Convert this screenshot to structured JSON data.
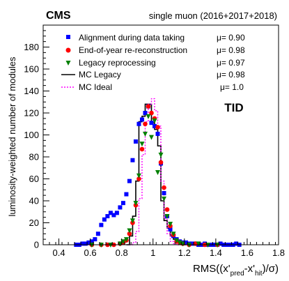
{
  "chart_data": {
    "type": "scatter",
    "experiment": "CMS",
    "dataset": "single muon (2016+2017+2018)",
    "region": "TID",
    "xlabel": {
      "main": "RMS((x'",
      "sub1": "pred",
      "mid": "-x'",
      "sub2": "hit",
      "end": ")/σ)"
    },
    "ylabel": "luminosity-weighted number of modules",
    "xlim": [
      0.3,
      1.8
    ],
    "ylim": [
      0,
      200
    ],
    "xticks": [
      "0.4",
      "0.6",
      "0.8",
      "1",
      "1.2",
      "1.4",
      "1.6",
      "1.8"
    ],
    "yticks": [
      "0",
      "20",
      "40",
      "60",
      "80",
      "100",
      "120",
      "140",
      "160",
      "180"
    ],
    "legend_position": "top-left",
    "series": [
      {
        "name": "Alignment during data taking",
        "mu": "μ= 0.90",
        "marker": "square",
        "color": "#0000ff",
        "x": [
          0.51,
          0.53,
          0.55,
          0.57,
          0.59,
          0.61,
          0.63,
          0.65,
          0.67,
          0.69,
          0.71,
          0.73,
          0.75,
          0.77,
          0.79,
          0.81,
          0.83,
          0.85,
          0.87,
          0.89,
          0.91,
          0.93,
          0.95,
          0.97,
          0.99,
          1.01,
          1.03,
          1.05,
          1.07,
          1.09,
          1.11,
          1.13,
          1.15,
          1.17,
          1.19,
          1.21,
          1.23,
          1.25,
          1.27,
          1.29,
          1.31,
          1.33,
          1.35,
          1.37,
          1.39,
          1.41,
          1.43,
          1.45,
          1.47,
          1.49,
          1.51,
          1.53,
          1.55
        ],
        "y": [
          0,
          0,
          1,
          1,
          2,
          3,
          5,
          10,
          18,
          23,
          26,
          29,
          27,
          29,
          34,
          38,
          46,
          58,
          77,
          94,
          110,
          114,
          120,
          126,
          111,
          108,
          101,
          74,
          47,
          26,
          14,
          8,
          5,
          3,
          2,
          2,
          1,
          1,
          1,
          0,
          0,
          1,
          0,
          0,
          0,
          0,
          1,
          0,
          0,
          0,
          0,
          1,
          0
        ]
      },
      {
        "name": "End-of-year re-reconstruction",
        "mu": "μ= 0.98",
        "marker": "circle",
        "color": "#ff0000",
        "x": [
          0.61,
          0.67,
          0.71,
          0.75,
          0.79,
          0.81,
          0.83,
          0.85,
          0.87,
          0.89,
          0.91,
          0.93,
          0.95,
          0.97,
          0.99,
          1.01,
          1.03,
          1.05,
          1.07,
          1.09,
          1.11,
          1.13,
          1.15,
          1.17,
          1.19,
          1.23,
          1.27,
          1.33,
          1.41
        ],
        "y": [
          0,
          0,
          0,
          0,
          1,
          2,
          4,
          10,
          20,
          36,
          60,
          87,
          110,
          126,
          120,
          115,
          107,
          75,
          52,
          32,
          17,
          9,
          3,
          2,
          1,
          0,
          1,
          0,
          0
        ]
      },
      {
        "name": "Legacy reprocessing",
        "mu": "μ= 0.97",
        "marker": "triangle-down",
        "color": "#008000",
        "x": [
          0.61,
          0.67,
          0.73,
          0.79,
          0.81,
          0.83,
          0.85,
          0.87,
          0.89,
          0.91,
          0.93,
          0.95,
          0.97,
          0.99,
          1.01,
          1.03,
          1.05,
          1.07,
          1.09,
          1.11,
          1.13,
          1.15,
          1.17,
          1.19,
          1.23,
          1.29,
          1.35,
          1.41
        ],
        "y": [
          0,
          0,
          0,
          1,
          3,
          5,
          13,
          22,
          38,
          63,
          92,
          101,
          117,
          98,
          113,
          66,
          82,
          42,
          26,
          19,
          10,
          4,
          2,
          1,
          0,
          1,
          0,
          0
        ]
      },
      {
        "name": "MC Legacy",
        "mu": "μ= 0.98",
        "style": "histogram-solid",
        "color": "#000000",
        "x": [
          0.84,
          0.86,
          0.88,
          0.9,
          0.92,
          0.94,
          0.96,
          0.98,
          1.0,
          1.02,
          1.04,
          1.06,
          1.08,
          1.1,
          1.12,
          1.14,
          1.16,
          1.18,
          1.2
        ],
        "y": [
          0,
          8,
          26,
          58,
          112,
          117,
          128,
          128,
          111,
          105,
          90,
          40,
          22,
          15,
          8,
          5,
          2,
          1,
          0
        ]
      },
      {
        "name": "MC Ideal",
        "mu": "μ= 1.0",
        "style": "histogram-dotted",
        "color": "#ff00ff",
        "x": [
          0.86,
          0.88,
          0.9,
          0.92,
          0.94,
          0.96,
          0.98,
          1.0,
          1.02,
          1.04,
          1.06,
          1.08,
          1.1,
          1.12,
          1.14,
          1.16,
          1.18,
          1.2
        ],
        "y": [
          0,
          2,
          12,
          42,
          82,
          112,
          128,
          133,
          122,
          108,
          58,
          24,
          10,
          3,
          1,
          0,
          0,
          0
        ]
      }
    ]
  }
}
